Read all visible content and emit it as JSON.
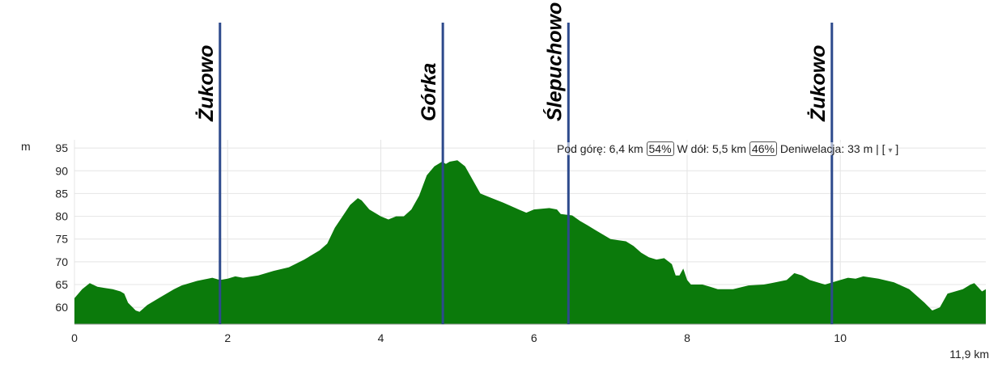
{
  "chart_data": {
    "type": "area",
    "y_unit": "m",
    "x_end_label": "11,9 km",
    "color": "#0b7a0b",
    "grid": true,
    "xlim": [
      0,
      11.9
    ],
    "ylim": [
      56.3,
      96.8
    ],
    "xticks": [
      0,
      2,
      4,
      6,
      8,
      10
    ],
    "yticks": [
      60,
      65,
      70,
      75,
      80,
      85,
      90,
      95
    ],
    "summary": {
      "up": "Pod górę: 6,4 km",
      "up_pct": "54%",
      "down": "W dół: 5,5 km",
      "down_pct": "46%",
      "elevation": "Deniwelacja: 33 m | [",
      "menu": "▾",
      "close": "]"
    },
    "markers": [
      {
        "name": "Żukowo",
        "x": 1.9
      },
      {
        "name": "Górka",
        "x": 4.81
      },
      {
        "name": "Ślepuchowo",
        "x": 6.45
      },
      {
        "name": "Żukowo",
        "x": 9.89
      }
    ],
    "x": [
      0,
      0.1,
      0.2,
      0.3,
      0.5,
      0.6,
      0.65,
      0.7,
      0.8,
      0.85,
      0.95,
      1.1,
      1.3,
      1.4,
      1.6,
      1.8,
      1.9,
      2.0,
      2.1,
      2.2,
      2.4,
      2.6,
      2.8,
      3.0,
      3.2,
      3.3,
      3.4,
      3.5,
      3.6,
      3.7,
      3.75,
      3.85,
      4.0,
      4.1,
      4.2,
      4.3,
      4.4,
      4.5,
      4.6,
      4.7,
      4.8,
      4.85,
      4.9,
      5.0,
      5.1,
      5.2,
      5.3,
      5.45,
      5.6,
      5.8,
      5.9,
      6.0,
      6.2,
      6.3,
      6.35,
      6.5,
      6.6,
      6.7,
      6.8,
      6.9,
      7.0,
      7.2,
      7.3,
      7.4,
      7.5,
      7.6,
      7.7,
      7.8,
      7.85,
      7.9,
      7.95,
      8.0,
      8.05,
      8.2,
      8.3,
      8.4,
      8.6,
      8.8,
      9.0,
      9.1,
      9.3,
      9.4,
      9.5,
      9.6,
      9.8,
      10.0,
      10.1,
      10.2,
      10.3,
      10.5,
      10.7,
      10.9,
      11.1,
      11.2,
      11.3,
      11.4,
      11.6,
      11.7,
      11.75,
      11.85,
      11.9
    ],
    "values": [
      62,
      64,
      65.3,
      64.5,
      64,
      63.5,
      63,
      61,
      59.3,
      59,
      60.5,
      62,
      64,
      64.8,
      65.8,
      66.5,
      66,
      66.3,
      66.8,
      66.5,
      67,
      68,
      68.8,
      70.5,
      72.5,
      74,
      77.5,
      80,
      82.5,
      84,
      83.5,
      81.5,
      80,
      79.3,
      80,
      80,
      81.5,
      84.5,
      89,
      91,
      92,
      91.5,
      92,
      92.3,
      91,
      88,
      85,
      84,
      83,
      81.5,
      80.8,
      81.5,
      81.8,
      81.5,
      80.5,
      80.2,
      79,
      78,
      77,
      76,
      75,
      74.5,
      73.5,
      72,
      71,
      70.5,
      70.8,
      69.5,
      67,
      67,
      68.5,
      66,
      65,
      65,
      64.5,
      64,
      64,
      64.8,
      65,
      65.3,
      66,
      67.5,
      67,
      66,
      65,
      66,
      66.5,
      66.3,
      66.8,
      66.3,
      65.5,
      64,
      61,
      59.3,
      60,
      63,
      64,
      65,
      65.3,
      63.5,
      64
    ]
  }
}
